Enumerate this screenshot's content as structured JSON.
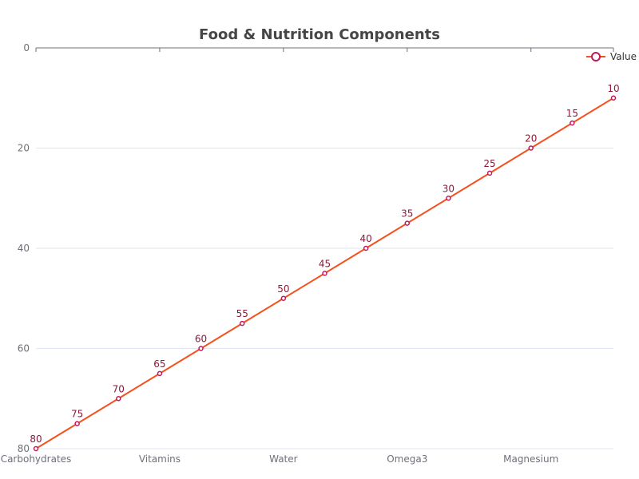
{
  "chart_data": {
    "type": "line",
    "title": "Food & Nutrition Components",
    "categories": [
      "Carbohydrates",
      "",
      "",
      "Vitamins",
      "",
      "",
      "Water",
      "",
      "",
      "Omega3",
      "",
      "",
      "Magnesium",
      "",
      ""
    ],
    "visible_category_labels": [
      "Carbohydrates",
      "Vitamins",
      "Water",
      "Omega3",
      "Magnesium"
    ],
    "series": [
      {
        "name": "Value",
        "values": [
          80,
          75,
          70,
          65,
          60,
          55,
          50,
          45,
          40,
          35,
          30,
          25,
          20,
          15,
          10
        ]
      }
    ],
    "y_axis": {
      "ticks": [
        0,
        20,
        40,
        60,
        80
      ],
      "range": [
        0,
        80
      ],
      "inverted": true
    },
    "grid": true,
    "legend": {
      "position": "top-right"
    },
    "colors": {
      "line": "#f4511e",
      "marker_stroke": "#c2185b",
      "label": "#8b1a3a",
      "legend_marker": "#c2185b",
      "title": "#464646",
      "grid": "#e0e6f1",
      "axis": "#6e7079"
    }
  }
}
